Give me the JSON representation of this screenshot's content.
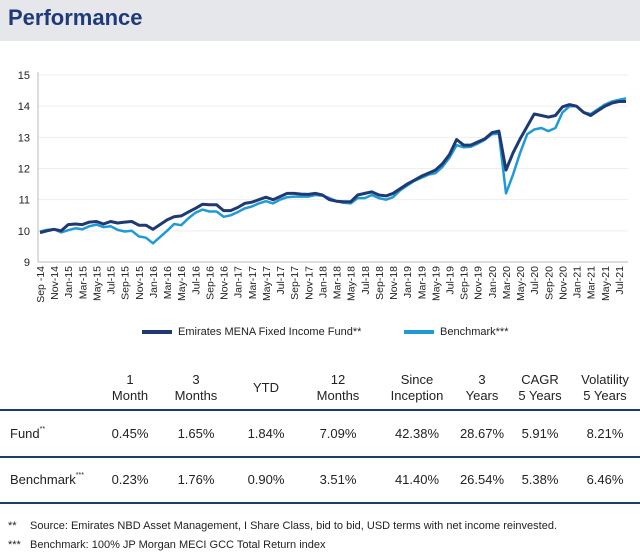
{
  "header": {
    "title": "Performance"
  },
  "chart_data": {
    "type": "line",
    "title": "",
    "xlabel": "",
    "ylabel": "",
    "ylim": [
      9,
      15
    ],
    "yticks": [
      9,
      10,
      11,
      12,
      13,
      14,
      15
    ],
    "grid": "horizontal",
    "legend_placement": "bottom",
    "x_tick_labels": [
      "Sep -14",
      "Nov-14",
      "Jan-15",
      "Mar-15",
      "May-15",
      "Jul-15",
      "Sep-15",
      "Nov-15",
      "Jan-16",
      "Mar-16",
      "May-16",
      "Jul-16",
      "Sep-16",
      "Nov-16",
      "Jan-17",
      "Mar-17",
      "May-17",
      "Jul-17",
      "Sep-17",
      "Nov-17",
      "Jan-18",
      "Mar-18",
      "May-18",
      "Jul-18",
      "Sep-18",
      "Nov-18",
      "Jan-19",
      "Mar-19",
      "May-19",
      "Jul-19",
      "Sep-19",
      "Nov-19",
      "Jan-20",
      "Mar-20",
      "May-20",
      "Jul-20",
      "Sep-20",
      "Nov-20",
      "Jan-21",
      "Mar-21",
      "May-21",
      "Jul-21"
    ],
    "x_start": "Sep-14",
    "x_frequency": "monthly",
    "series": [
      {
        "name": "Emirates MENA Fixed Income Fund**",
        "color": "#1f3a72",
        "values": [
          9.94,
          10.0,
          10.05,
          10.0,
          10.2,
          10.22,
          10.2,
          10.28,
          10.3,
          10.22,
          10.3,
          10.25,
          10.28,
          10.3,
          10.18,
          10.18,
          10.05,
          10.2,
          10.35,
          10.45,
          10.48,
          10.6,
          10.72,
          10.85,
          10.84,
          10.84,
          10.65,
          10.65,
          10.75,
          10.88,
          10.92,
          11.0,
          11.08,
          11.0,
          11.1,
          11.2,
          11.2,
          11.18,
          11.17,
          11.2,
          11.15,
          11.0,
          10.95,
          10.93,
          10.93,
          11.15,
          11.2,
          11.25,
          11.15,
          11.12,
          11.2,
          11.35,
          11.5,
          11.62,
          11.75,
          11.85,
          11.95,
          12.15,
          12.45,
          12.93,
          12.75,
          12.75,
          12.85,
          12.95,
          13.15,
          13.2,
          11.95,
          12.5,
          12.95,
          13.35,
          13.75,
          13.7,
          13.65,
          13.7,
          13.98,
          14.05,
          14.0,
          13.8,
          13.7,
          13.85,
          14.0,
          14.1,
          14.15,
          14.15
        ]
      },
      {
        "name": "Benchmark***",
        "color": "#1e9ad6",
        "values": [
          9.98,
          10.03,
          10.05,
          9.95,
          10.02,
          10.08,
          10.05,
          10.15,
          10.2,
          10.12,
          10.15,
          10.03,
          9.98,
          10.0,
          9.82,
          9.78,
          9.6,
          9.8,
          10.0,
          10.22,
          10.18,
          10.4,
          10.58,
          10.68,
          10.62,
          10.62,
          10.45,
          10.5,
          10.6,
          10.72,
          10.78,
          10.88,
          10.95,
          10.88,
          11.0,
          11.08,
          11.1,
          11.1,
          11.1,
          11.15,
          11.13,
          11.05,
          10.95,
          10.9,
          10.88,
          11.05,
          11.05,
          11.15,
          11.05,
          11.0,
          11.08,
          11.3,
          11.45,
          11.6,
          11.7,
          11.8,
          11.85,
          12.05,
          12.35,
          12.75,
          12.68,
          12.7,
          12.8,
          12.92,
          13.1,
          13.12,
          11.2,
          11.8,
          12.5,
          13.1,
          13.25,
          13.3,
          13.2,
          13.3,
          13.8,
          14.0,
          14.0,
          13.8,
          13.75,
          13.9,
          14.05,
          14.15,
          14.2,
          14.25
        ]
      }
    ]
  },
  "table": {
    "columns": [
      [
        "1",
        "Month"
      ],
      [
        "3",
        "Months"
      ],
      [
        "YTD",
        ""
      ],
      [
        "12",
        "Months"
      ],
      [
        "Since",
        "Inception"
      ],
      [
        "3",
        "Years"
      ],
      [
        "CAGR",
        "5 Years"
      ],
      [
        "Volatility",
        "5 Years"
      ]
    ],
    "rows": [
      {
        "label": "Fund",
        "mark": "**",
        "values": [
          "0.45%",
          "1.65%",
          "1.84%",
          "7.09%",
          "42.38%",
          "28.67%",
          "5.91%",
          "8.21%"
        ]
      },
      {
        "label": "Benchmark",
        "mark": "***",
        "values": [
          "0.23%",
          "1.76%",
          "0.90%",
          "3.51%",
          "41.40%",
          "26.54%",
          "5.38%",
          "6.46%"
        ]
      }
    ]
  },
  "footnotes": [
    {
      "mark": "**",
      "text": "Source: Emirates NBD Asset Management, I Share Class, bid to bid, USD terms with net income reinvested."
    },
    {
      "mark": "***",
      "text": "Benchmark: 100% JP Morgan MECI GCC Total Return index"
    }
  ]
}
